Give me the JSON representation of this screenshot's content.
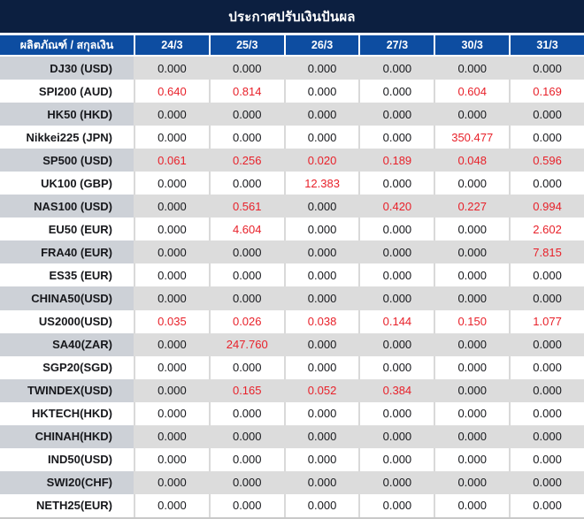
{
  "title": "ประกาศปรับเงินปันผล",
  "colors": {
    "title_bar_bg": "#0c1f40",
    "header_row_bg": "#0d4da1",
    "gray_row_bg": "#dcdcdc",
    "gray_label_bg": "#cdd1d7",
    "red_value": "#e8212a",
    "dark_text": "#17181c"
  },
  "table": {
    "label_header": "ผลิตภัณฑ์ / สกุลเงิน",
    "date_headers": [
      "24/3",
      "25/3",
      "26/3",
      "27/3",
      "30/3",
      "31/3"
    ],
    "zero_value": "0.000",
    "rows": [
      {
        "label": "DJ30 (USD)",
        "values": [
          "0.000",
          "0.000",
          "0.000",
          "0.000",
          "0.000",
          "0.000"
        ]
      },
      {
        "label": "SPI200 (AUD)",
        "values": [
          "0.640",
          "0.814",
          "0.000",
          "0.000",
          "0.604",
          "0.169"
        ]
      },
      {
        "label": "HK50 (HKD)",
        "values": [
          "0.000",
          "0.000",
          "0.000",
          "0.000",
          "0.000",
          "0.000"
        ]
      },
      {
        "label": "Nikkei225 (JPN)",
        "values": [
          "0.000",
          "0.000",
          "0.000",
          "0.000",
          "350.477",
          "0.000"
        ]
      },
      {
        "label": "SP500 (USD)",
        "values": [
          "0.061",
          "0.256",
          "0.020",
          "0.189",
          "0.048",
          "0.596"
        ]
      },
      {
        "label": "UK100 (GBP)",
        "values": [
          "0.000",
          "0.000",
          "12.383",
          "0.000",
          "0.000",
          "0.000"
        ]
      },
      {
        "label": "NAS100 (USD)",
        "values": [
          "0.000",
          "0.561",
          "0.000",
          "0.420",
          "0.227",
          "0.994"
        ]
      },
      {
        "label": "EU50 (EUR)",
        "values": [
          "0.000",
          "4.604",
          "0.000",
          "0.000",
          "0.000",
          "2.602"
        ]
      },
      {
        "label": "FRA40 (EUR)",
        "values": [
          "0.000",
          "0.000",
          "0.000",
          "0.000",
          "0.000",
          "7.815"
        ]
      },
      {
        "label": "ES35 (EUR)",
        "values": [
          "0.000",
          "0.000",
          "0.000",
          "0.000",
          "0.000",
          "0.000"
        ]
      },
      {
        "label": "CHINA50(USD)",
        "values": [
          "0.000",
          "0.000",
          "0.000",
          "0.000",
          "0.000",
          "0.000"
        ]
      },
      {
        "label": "US2000(USD)",
        "values": [
          "0.035",
          "0.026",
          "0.038",
          "0.144",
          "0.150",
          "1.077"
        ]
      },
      {
        "label": "SA40(ZAR)",
        "values": [
          "0.000",
          "247.760",
          "0.000",
          "0.000",
          "0.000",
          "0.000"
        ]
      },
      {
        "label": "SGP20(SGD)",
        "values": [
          "0.000",
          "0.000",
          "0.000",
          "0.000",
          "0.000",
          "0.000"
        ]
      },
      {
        "label": "TWINDEX(USD)",
        "values": [
          "0.000",
          "0.165",
          "0.052",
          "0.384",
          "0.000",
          "0.000"
        ]
      },
      {
        "label": "HKTECH(HKD)",
        "values": [
          "0.000",
          "0.000",
          "0.000",
          "0.000",
          "0.000",
          "0.000"
        ]
      },
      {
        "label": "CHINAH(HKD)",
        "values": [
          "0.000",
          "0.000",
          "0.000",
          "0.000",
          "0.000",
          "0.000"
        ]
      },
      {
        "label": "IND50(USD)",
        "values": [
          "0.000",
          "0.000",
          "0.000",
          "0.000",
          "0.000",
          "0.000"
        ]
      },
      {
        "label": "SWI20(CHF)",
        "values": [
          "0.000",
          "0.000",
          "0.000",
          "0.000",
          "0.000",
          "0.000"
        ]
      },
      {
        "label": "NETH25(EUR)",
        "values": [
          "0.000",
          "0.000",
          "0.000",
          "0.000",
          "0.000",
          "0.000"
        ]
      }
    ]
  }
}
